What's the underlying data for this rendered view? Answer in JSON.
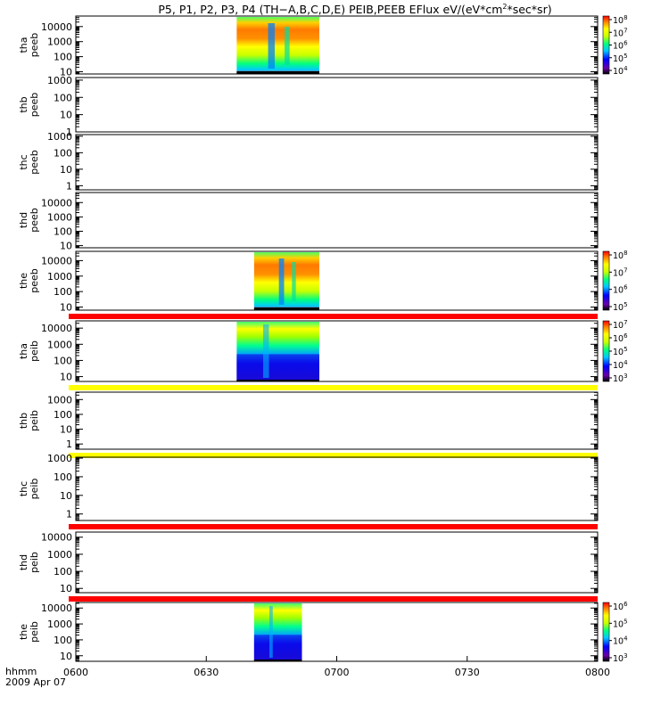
{
  "title": {
    "prefix": "P5, P1, P2, P3, P4 (TH−A,B,C,D,E) PEIB,PEEB EFlux eV/(eV*cm",
    "sup": "2",
    "suffix": "*sec*sr)"
  },
  "time_axis": {
    "label_primary": "hhmm",
    "label_date": "2009 Apr 07",
    "ticks": [
      "0600",
      "0630",
      "0700",
      "0730",
      "0800"
    ]
  },
  "chart_data": {
    "type": "heatmap",
    "x_range_minutes": [
      360,
      480
    ],
    "panels": [
      {
        "label_line1": "tha",
        "label_line2": "peeb",
        "ylog_min": 0.85,
        "ylog_max": 4.7,
        "ticks": [
          "10",
          "100",
          "1000",
          "10000"
        ],
        "tick_exps": [
          1,
          2,
          3,
          4
        ],
        "data_start": 397,
        "data_end": 416,
        "style": "electron",
        "colorbar_exps": [
          4,
          5,
          6,
          7,
          8
        ]
      },
      {
        "label_line1": "thb",
        "label_line2": "peeb",
        "ylog_min": 0,
        "ylog_max": 3.15,
        "ticks": [
          "1",
          "10",
          "100",
          "1000"
        ],
        "tick_exps": [
          0,
          1,
          2,
          3
        ]
      },
      {
        "label_line1": "thc",
        "label_line2": "peeb",
        "ylog_min": -0.25,
        "ylog_max": 3.1,
        "ticks": [
          "1",
          "10",
          "100",
          "1000"
        ],
        "tick_exps": [
          0,
          1,
          2,
          3
        ]
      },
      {
        "label_line1": "thd",
        "label_line2": "peeb",
        "ylog_min": 0.85,
        "ylog_max": 4.7,
        "ticks": [
          "10",
          "100",
          "1000",
          "10000"
        ],
        "tick_exps": [
          1,
          2,
          3,
          4
        ]
      },
      {
        "label_line1": "the",
        "label_line2": "peeb",
        "ylog_min": 0.8,
        "ylog_max": 4.6,
        "ticks": [
          "10",
          "100",
          "1000",
          "10000"
        ],
        "tick_exps": [
          1,
          2,
          3,
          4
        ],
        "data_start": 401,
        "data_end": 416,
        "style": "electron",
        "colorbar_exps": [
          5,
          6,
          7,
          8
        ],
        "bottom_band": "#ff0000"
      },
      {
        "label_line1": "tha",
        "label_line2": "peib",
        "ylog_min": 0.7,
        "ylog_max": 4.45,
        "ticks": [
          "10",
          "100",
          "1000",
          "10000"
        ],
        "tick_exps": [
          1,
          2,
          3,
          4
        ],
        "data_start": 397,
        "data_end": 416,
        "style": "ion",
        "colorbar_exps": [
          3,
          4,
          5,
          6,
          7
        ],
        "bottom_band": "#ffff00"
      },
      {
        "label_line1": "thb",
        "label_line2": "peib",
        "ylog_min": -0.35,
        "ylog_max": 3.5,
        "ticks": [
          "1",
          "10",
          "100",
          "1000"
        ],
        "tick_exps": [
          0,
          1,
          2,
          3
        ],
        "bottom_band": "#ffff00"
      },
      {
        "label_line1": "thc",
        "label_line2": "peib",
        "ylog_min": -0.35,
        "ylog_max": 3.05,
        "ticks": [
          "1",
          "10",
          "100",
          "1000"
        ],
        "tick_exps": [
          0,
          1,
          2,
          3
        ],
        "bottom_band": "#ff0000"
      },
      {
        "label_line1": "thd",
        "label_line2": "peib",
        "ylog_min": 0.75,
        "ylog_max": 4.3,
        "ticks": [
          "10",
          "100",
          "1000",
          "10000"
        ],
        "tick_exps": [
          1,
          2,
          3,
          4
        ],
        "bottom_band": "#ff0000"
      },
      {
        "label_line1": "the",
        "label_line2": "peib",
        "ylog_min": 0.65,
        "ylog_max": 4.35,
        "ticks": [
          "10",
          "100",
          "1000",
          "10000"
        ],
        "tick_exps": [
          1,
          2,
          3,
          4
        ],
        "data_start": 401,
        "data_end": 412,
        "style": "ion",
        "colorbar_exps": [
          3,
          4,
          5,
          6
        ]
      }
    ]
  }
}
